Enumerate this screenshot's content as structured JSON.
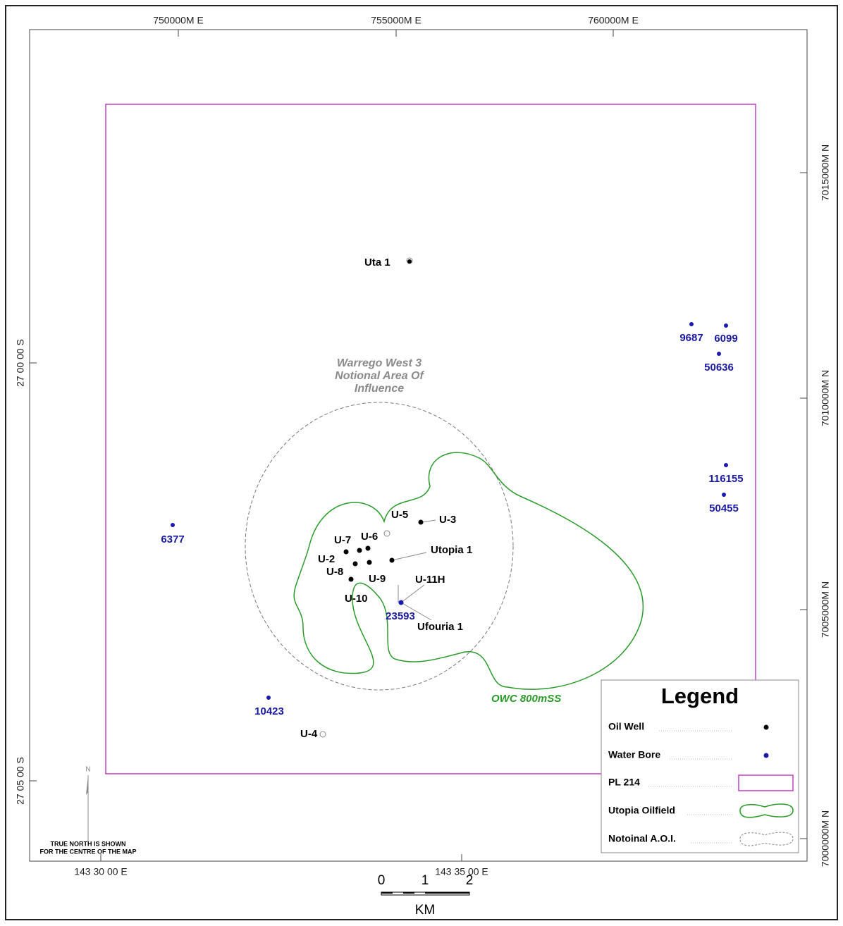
{
  "map": {
    "grid_labels": {
      "top": [
        "750000M E",
        "755000M E",
        "760000M E"
      ],
      "right": [
        "7015000M N",
        "7010000M N",
        "7005000M N",
        "7000000M N"
      ],
      "left": [
        "27 00 00 S",
        "27 05 00 S"
      ],
      "bottom": [
        "143 30 00 E",
        "143 35 00 E"
      ]
    },
    "north_arrow": {
      "letter": "N",
      "note": [
        "TRUE NORTH IS SHOWN",
        "FOR THE CENTRE OF THE MAP"
      ]
    },
    "scale_bar": {
      "ticks": [
        "0",
        "1",
        "2"
      ],
      "unit": "KM"
    },
    "oil_wells": [
      "Uta 1",
      "U-5",
      "U-3",
      "U-7",
      "U-6",
      "Utopia 1",
      "U-2",
      "U-8",
      "U-9",
      "U-11H",
      "U-10",
      "Ufouria 1",
      "U-4"
    ],
    "water_bores": [
      "9687",
      "6099",
      "50636",
      "116155",
      "50455",
      "6377",
      "10423",
      "23593"
    ],
    "annotations": {
      "aoi": [
        "Warrego West 3",
        "Notional Area Of",
        "Influence"
      ],
      "owc": "OWC 800mSS"
    },
    "legend": {
      "title": "Legend",
      "items": [
        "Oil Well",
        "Water Bore",
        "PL 214",
        "Utopia Oilfield",
        "Notoinal A.O.I."
      ]
    }
  }
}
